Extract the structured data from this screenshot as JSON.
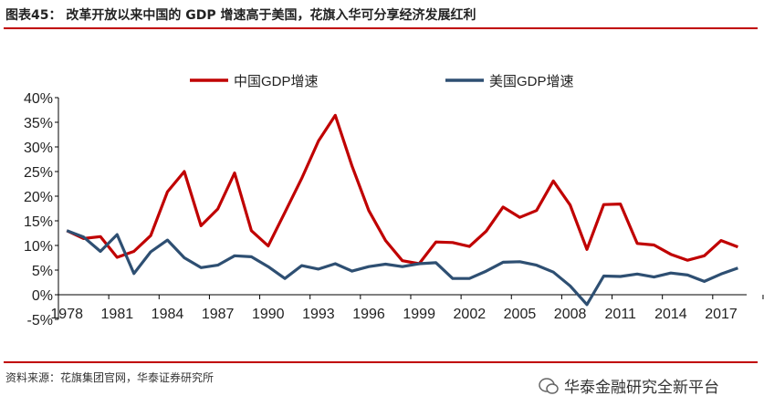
{
  "title": "图表45： 改革开放以来中国的 GDP 增速高于美国，花旗入华可分享经济发展红利",
  "source": "资料来源：花旗集团官网，华泰证券研究所",
  "watermark": "华泰金融研究全新平台",
  "chart_data": {
    "type": "line",
    "x": [
      1978,
      1979,
      1980,
      1981,
      1982,
      1983,
      1984,
      1985,
      1986,
      1987,
      1988,
      1989,
      1990,
      1991,
      1992,
      1993,
      1994,
      1995,
      1996,
      1997,
      1998,
      1999,
      2000,
      2001,
      2002,
      2003,
      2004,
      2005,
      2006,
      2007,
      2008,
      2009,
      2010,
      2011,
      2012,
      2013,
      2014,
      2015,
      2016,
      2017,
      2018
    ],
    "xticks": [
      "1978",
      "1981",
      "1984",
      "1987",
      "1990",
      "1993",
      "1996",
      "1999",
      "2002",
      "2005",
      "2008",
      "2011",
      "2014",
      "2017"
    ],
    "yticks": [
      "-5%",
      "0%",
      "5%",
      "10%",
      "15%",
      "20%",
      "25%",
      "30%",
      "35%",
      "40%"
    ],
    "ylim": [
      -5,
      40
    ],
    "legend": "top",
    "grid": false,
    "series": [
      {
        "name": "中国GDP增速",
        "color": "#c00000",
        "values": [
          13,
          11.4,
          11.8,
          7.6,
          8.8,
          12,
          20.9,
          25,
          14,
          17.4,
          24.7,
          13,
          9.9,
          16.7,
          23.6,
          31.2,
          36.4,
          26.1,
          17.1,
          11,
          6.9,
          6.3,
          10.7,
          10.6,
          9.8,
          12.9,
          17.8,
          15.7,
          17.1,
          23.1,
          18.2,
          9.2,
          18.3,
          18.4,
          10.4,
          10.1,
          8.2,
          7.0,
          7.9,
          11.0,
          9.7
        ]
      },
      {
        "name": "美国GDP增速",
        "color": "#2e4f72",
        "values": [
          13,
          11.7,
          8.8,
          12.2,
          4.3,
          8.7,
          11.1,
          7.5,
          5.5,
          6.0,
          7.9,
          7.7,
          5.7,
          3.3,
          5.9,
          5.2,
          6.3,
          4.8,
          5.7,
          6.2,
          5.7,
          6.3,
          6.5,
          3.3,
          3.3,
          4.8,
          6.6,
          6.7,
          6.0,
          4.6,
          1.8,
          -2.0,
          3.8,
          3.7,
          4.2,
          3.6,
          4.4,
          4.0,
          2.7,
          4.2,
          5.4
        ]
      }
    ]
  }
}
